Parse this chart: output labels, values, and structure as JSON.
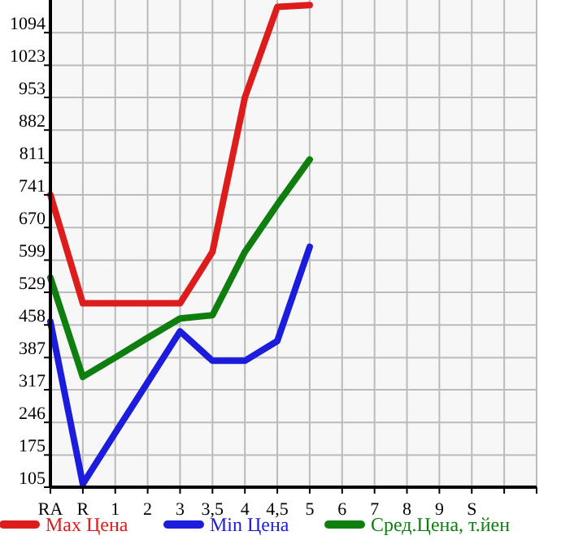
{
  "chart_data": {
    "type": "line",
    "categories": [
      "RA",
      "R",
      "1",
      "2",
      "3",
      "3,5",
      "4",
      "4,5",
      "5",
      "6",
      "7",
      "8",
      "9",
      "S",
      null,
      null
    ],
    "series": [
      {
        "name": "Max Цена",
        "color": "#dd1c1c",
        "values": [
          741,
          505,
          505,
          505,
          505,
          617,
          953,
          1150,
          1154,
          null,
          null,
          null,
          null,
          null,
          null,
          null
        ]
      },
      {
        "name": "Min Цена",
        "color": "#1c1cdd",
        "values": [
          465,
          112,
          223,
          333,
          444,
          380,
          380,
          423,
          628,
          null,
          null,
          null,
          null,
          null,
          null,
          null
        ]
      },
      {
        "name": "Сред.Цена, т.йен",
        "color": "#0e7e0e",
        "values": [
          561,
          345,
          387,
          430,
          472,
          479,
          617,
          720,
          818,
          null,
          null,
          null,
          null,
          null,
          null,
          null
        ]
      }
    ],
    "ylim": [
      105,
      1165
    ],
    "yticks": [
      105,
      175,
      246,
      317,
      387,
      458,
      529,
      599,
      670,
      741,
      811,
      882,
      953,
      1023,
      1094
    ],
    "grid": true,
    "legend": "bottom",
    "marker": "none",
    "line_style": "solid"
  }
}
